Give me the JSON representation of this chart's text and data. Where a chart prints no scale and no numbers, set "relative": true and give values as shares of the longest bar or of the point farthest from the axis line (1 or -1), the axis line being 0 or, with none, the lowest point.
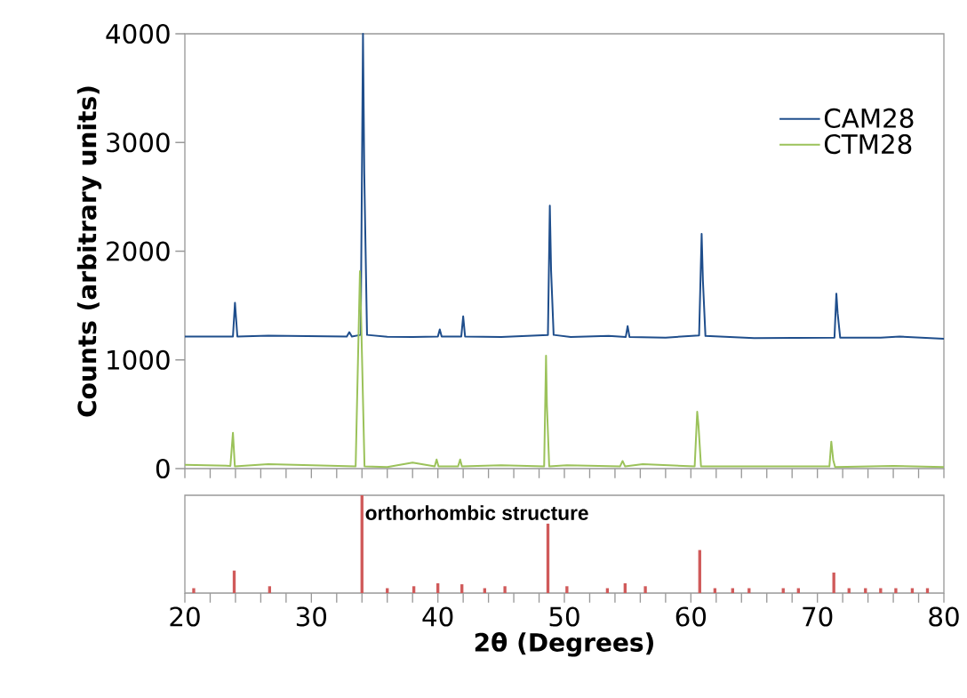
{
  "chart_data": [
    {
      "type": "line",
      "ylabel": "Counts (arbitrary units)",
      "xlim": [
        20,
        80
      ],
      "ylim": [
        0,
        4000
      ],
      "yticks": [
        0,
        1000,
        2000,
        3000,
        4000
      ],
      "tick_labels": "y",
      "legend": "top right",
      "xticks": [
        {
          "value": 20,
          "label": null
        },
        {
          "value": 22,
          "label": null
        },
        {
          "value": 24,
          "label": null
        },
        {
          "value": 26,
          "label": null
        },
        {
          "value": 28,
          "label": null
        },
        {
          "value": 30,
          "label": null
        },
        {
          "value": 32,
          "label": null
        },
        {
          "value": 34,
          "label": null
        },
        {
          "value": 36,
          "label": null
        },
        {
          "value": 38,
          "label": null
        },
        {
          "value": 40,
          "label": null
        },
        {
          "value": 42,
          "label": null
        },
        {
          "value": 44,
          "label": null
        },
        {
          "value": 46,
          "label": null
        },
        {
          "value": 48,
          "label": null
        },
        {
          "value": 50,
          "label": null
        },
        {
          "value": 52,
          "label": null
        },
        {
          "value": 54,
          "label": null
        },
        {
          "value": 56,
          "label": null
        },
        {
          "value": 58,
          "label": null
        },
        {
          "value": 60,
          "label": null
        },
        {
          "value": 62,
          "label": null
        },
        {
          "value": 64,
          "label": null
        },
        {
          "value": 66,
          "label": null
        },
        {
          "value": 68,
          "label": null
        },
        {
          "value": 70,
          "label": null
        },
        {
          "value": 72,
          "label": null
        },
        {
          "value": 74,
          "label": null
        },
        {
          "value": 76,
          "label": null
        },
        {
          "value": 78,
          "label": null
        },
        {
          "value": 80,
          "label": null
        }
      ],
      "series": [
        {
          "name": "CAM28",
          "color": "#1f4e8c",
          "x": [
            20,
            23.8,
            23.96,
            24.15,
            26.6,
            32.8,
            33.0,
            33.2,
            33.9,
            34.08,
            34.18,
            34.4,
            36,
            38,
            40.0,
            40.15,
            40.3,
            41.85,
            42.0,
            42.15,
            45,
            48.7,
            48.85,
            48.95,
            49.15,
            50.5,
            53.5,
            54.85,
            55.0,
            55.15,
            58,
            60.65,
            60.85,
            60.95,
            61.15,
            65,
            71.35,
            71.5,
            71.6,
            71.8,
            75,
            76.5,
            80
          ],
          "values": [
            1215,
            1215,
            1525,
            1215,
            1222,
            1215,
            1255,
            1215,
            1230,
            4000,
            2730,
            1230,
            1212,
            1210,
            1215,
            1280,
            1215,
            1215,
            1400,
            1215,
            1210,
            1230,
            2420,
            1820,
            1230,
            1210,
            1220,
            1210,
            1310,
            1210,
            1205,
            1225,
            2160,
            1730,
            1220,
            1200,
            1205,
            1610,
            1430,
            1205,
            1205,
            1215,
            1195
          ]
        },
        {
          "name": "CTM28",
          "color": "#9bc25a",
          "x": [
            20,
            23.6,
            23.8,
            23.95,
            26.6,
            33.5,
            33.84,
            33.92,
            34.2,
            36,
            38,
            39.75,
            39.9,
            40.05,
            41.6,
            41.76,
            41.9,
            45,
            48.4,
            48.55,
            48.62,
            48.8,
            50.2,
            54.4,
            54.6,
            54.8,
            56.2,
            60.3,
            60.5,
            60.6,
            60.8,
            70.95,
            71.1,
            71.25,
            71.4,
            76,
            80
          ],
          "values": [
            35,
            25,
            330,
            20,
            40,
            20,
            1816,
            1450,
            20,
            15,
            55,
            20,
            84,
            20,
            20,
            84,
            20,
            30,
            20,
            1039,
            580,
            20,
            30,
            20,
            70,
            20,
            40,
            20,
            523,
            400,
            20,
            20,
            248,
            80,
            15,
            25,
            15
          ]
        }
      ]
    },
    {
      "type": "bar",
      "relative": true,
      "xlabel": "2θ (Degrees)",
      "xlim": [
        20,
        80
      ],
      "tick_labels": "x",
      "color": "#d05a5a",
      "annotations": [
        "orthorhombic structure"
      ],
      "xticks": [
        20,
        {
          "value": 22,
          "label": null
        },
        {
          "value": 24,
          "label": null
        },
        {
          "value": 26,
          "label": null
        },
        {
          "value": 28,
          "label": null
        },
        30,
        {
          "value": 32,
          "label": null
        },
        {
          "value": 34,
          "label": null
        },
        {
          "value": 36,
          "label": null
        },
        {
          "value": 38,
          "label": null
        },
        40,
        {
          "value": 42,
          "label": null
        },
        {
          "value": 44,
          "label": null
        },
        {
          "value": 46,
          "label": null
        },
        {
          "value": 48,
          "label": null
        },
        50,
        {
          "value": 52,
          "label": null
        },
        {
          "value": 54,
          "label": null
        },
        {
          "value": 56,
          "label": null
        },
        {
          "value": 58,
          "label": null
        },
        60,
        {
          "value": 62,
          "label": null
        },
        {
          "value": 64,
          "label": null
        },
        {
          "value": 66,
          "label": null
        },
        {
          "value": 68,
          "label": null
        },
        70,
        {
          "value": 72,
          "label": null
        },
        {
          "value": 74,
          "label": null
        },
        {
          "value": 76,
          "label": null
        },
        {
          "value": 78,
          "label": null
        },
        80
      ],
      "x": [
        20.7,
        23.9,
        26.7,
        34.0,
        36.0,
        38.1,
        40.0,
        41.9,
        43.7,
        45.3,
        48.7,
        50.2,
        53.4,
        54.8,
        56.4,
        60.7,
        61.9,
        63.3,
        64.6,
        67.3,
        68.5,
        71.3,
        72.5,
        73.8,
        75.0,
        76.2,
        77.5,
        78.7
      ],
      "values": [
        0.05,
        0.23,
        0.07,
        1.0,
        0.05,
        0.07,
        0.1,
        0.09,
        0.05,
        0.07,
        0.71,
        0.07,
        0.05,
        0.1,
        0.07,
        0.44,
        0.05,
        0.05,
        0.05,
        0.05,
        0.05,
        0.21,
        0.05,
        0.05,
        0.05,
        0.05,
        0.05,
        0.05
      ]
    }
  ]
}
